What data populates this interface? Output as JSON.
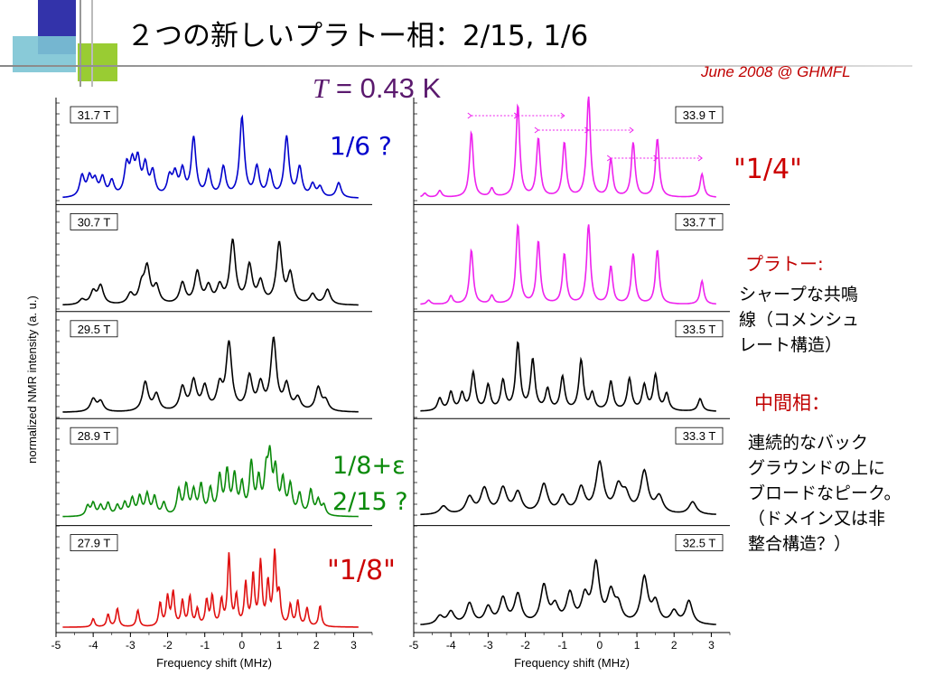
{
  "slide": {
    "title": "２つの新しいプラトー相：2/15, 1/6",
    "date_label": "June 2008 @ GHMFL",
    "temperature": {
      "symbol": "T",
      "rest": " = 0.43 K"
    },
    "annotations": {
      "one_sixth": "1/6 ?",
      "one_quarter": "\"1/4\"",
      "one_eighth_eps": "1/8+ε",
      "two_fifteenth": "2/15 ?",
      "one_eighth": "\"1/8\""
    },
    "notes": {
      "plateau_heading": "プラトー:",
      "plateau_lines": [
        "シャープな共鳴",
        "線（コメンシュ",
        "レート構造）"
      ],
      "intermediate_heading": "中間相：",
      "intermediate_lines": [
        "連続的なバック",
        "グラウンドの上に",
        "ブロードなピーク。",
        "（ドメイン又は非",
        "整合構造？）"
      ]
    },
    "colors": {
      "title_text": "#000000",
      "date": "#c00000",
      "blue": "#0000cc",
      "magenta": "#ee22ee",
      "green": "#0a8a0a",
      "red": "#e01010",
      "black": "#000000",
      "deco_blue": "#3333aa",
      "deco_green": "#99cc33",
      "deco_teal": "#66bbcc"
    }
  },
  "chart_data": {
    "type": "line",
    "ylabel": "normalized NMR intensity (a. u.)",
    "left": {
      "xlabel": "Frequency shift  (MHz)",
      "xlim": [
        -5,
        3.5
      ],
      "xticks": [
        -5,
        -4,
        -3,
        -2,
        -1,
        0,
        1,
        2,
        3
      ],
      "panels": [
        {
          "label": "31.7 T",
          "color": "blue",
          "background": 0.03,
          "width": 0.075,
          "peaks": [
            [
              -4.3,
              0.25
            ],
            [
              -4.1,
              0.22
            ],
            [
              -3.95,
              0.18
            ],
            [
              -3.75,
              0.22
            ],
            [
              -3.5,
              0.18
            ],
            [
              -3.1,
              0.35
            ],
            [
              -2.95,
              0.35
            ],
            [
              -2.8,
              0.4
            ],
            [
              -2.6,
              0.35
            ],
            [
              -2.4,
              0.28
            ],
            [
              -1.95,
              0.22
            ],
            [
              -1.8,
              0.25
            ],
            [
              -1.6,
              0.3
            ],
            [
              -1.3,
              0.7
            ],
            [
              -0.9,
              0.3
            ],
            [
              -0.5,
              0.35
            ],
            [
              0.0,
              0.95
            ],
            [
              0.4,
              0.35
            ],
            [
              0.75,
              0.3
            ],
            [
              1.2,
              0.72
            ],
            [
              1.55,
              0.35
            ],
            [
              1.9,
              0.15
            ],
            [
              2.1,
              0.12
            ],
            [
              2.6,
              0.18
            ]
          ]
        },
        {
          "label": "30.7 T",
          "color": "black",
          "background": 0.03,
          "width": 0.09,
          "peaks": [
            [
              -4.3,
              0.06
            ],
            [
              -4.0,
              0.15
            ],
            [
              -3.8,
              0.22
            ],
            [
              -3.0,
              0.12
            ],
            [
              -2.7,
              0.2
            ],
            [
              -2.55,
              0.42
            ],
            [
              -2.3,
              0.2
            ],
            [
              -1.6,
              0.25
            ],
            [
              -1.2,
              0.38
            ],
            [
              -0.9,
              0.2
            ],
            [
              -0.6,
              0.2
            ],
            [
              -0.25,
              0.75
            ],
            [
              0.2,
              0.45
            ],
            [
              0.5,
              0.25
            ],
            [
              1.0,
              0.72
            ],
            [
              1.3,
              0.35
            ],
            [
              1.9,
              0.12
            ],
            [
              2.3,
              0.18
            ]
          ]
        },
        {
          "label": "29.5 T",
          "color": "black",
          "background": 0.03,
          "width": 0.09,
          "peaks": [
            [
              -4.0,
              0.15
            ],
            [
              -3.8,
              0.12
            ],
            [
              -2.6,
              0.35
            ],
            [
              -2.3,
              0.2
            ],
            [
              -1.6,
              0.28
            ],
            [
              -1.3,
              0.35
            ],
            [
              -1.0,
              0.28
            ],
            [
              -0.6,
              0.28
            ],
            [
              -0.35,
              0.8
            ],
            [
              0.2,
              0.4
            ],
            [
              0.5,
              0.3
            ],
            [
              0.85,
              0.85
            ],
            [
              1.2,
              0.3
            ],
            [
              1.5,
              0.15
            ],
            [
              2.05,
              0.28
            ],
            [
              2.25,
              0.12
            ]
          ]
        },
        {
          "label": "28.9 T",
          "color": "green",
          "background": 0.06,
          "width": 0.06,
          "peaks": [
            [
              -4.15,
              0.12
            ],
            [
              -4.0,
              0.15
            ],
            [
              -3.8,
              0.12
            ],
            [
              -3.6,
              0.15
            ],
            [
              -3.35,
              0.12
            ],
            [
              -3.15,
              0.15
            ],
            [
              -2.95,
              0.2
            ],
            [
              -2.75,
              0.22
            ],
            [
              -2.55,
              0.25
            ],
            [
              -2.35,
              0.22
            ],
            [
              -2.1,
              0.15
            ],
            [
              -1.7,
              0.3
            ],
            [
              -1.5,
              0.35
            ],
            [
              -1.3,
              0.28
            ],
            [
              -1.1,
              0.35
            ],
            [
              -0.85,
              0.3
            ],
            [
              -0.6,
              0.45
            ],
            [
              -0.4,
              0.5
            ],
            [
              -0.2,
              0.45
            ],
            [
              0.0,
              0.35
            ],
            [
              0.25,
              0.6
            ],
            [
              0.45,
              0.4
            ],
            [
              0.65,
              0.45
            ],
            [
              0.75,
              0.62
            ],
            [
              0.9,
              0.5
            ],
            [
              1.1,
              0.4
            ],
            [
              1.3,
              0.35
            ],
            [
              1.55,
              0.25
            ],
            [
              1.85,
              0.3
            ],
            [
              2.05,
              0.18
            ],
            [
              2.2,
              0.12
            ]
          ]
        },
        {
          "label": "27.9 T",
          "color": "red",
          "background": 0.02,
          "width": 0.045,
          "peaks": [
            [
              -4.0,
              0.1
            ],
            [
              -3.6,
              0.15
            ],
            [
              -3.35,
              0.22
            ],
            [
              -2.8,
              0.2
            ],
            [
              -2.2,
              0.28
            ],
            [
              -2.0,
              0.35
            ],
            [
              -1.85,
              0.4
            ],
            [
              -1.6,
              0.3
            ],
            [
              -1.4,
              0.35
            ],
            [
              -1.2,
              0.2
            ],
            [
              -0.95,
              0.3
            ],
            [
              -0.8,
              0.35
            ],
            [
              -0.55,
              0.3
            ],
            [
              -0.35,
              0.85
            ],
            [
              -0.15,
              0.35
            ],
            [
              0.1,
              0.5
            ],
            [
              0.3,
              0.6
            ],
            [
              0.5,
              0.75
            ],
            [
              0.7,
              0.5
            ],
            [
              0.88,
              0.85
            ],
            [
              1.0,
              0.35
            ],
            [
              1.3,
              0.25
            ],
            [
              1.5,
              0.3
            ],
            [
              1.75,
              0.22
            ],
            [
              2.1,
              0.25
            ]
          ]
        }
      ]
    },
    "right": {
      "xlabel": "Frequency shift  (MHz)",
      "xlim": [
        -5,
        3.5
      ],
      "xticks": [
        -5,
        -4,
        -3,
        -2,
        -1,
        0,
        1,
        2,
        3
      ],
      "panels": [
        {
          "label": "33.9 T",
          "color": "magenta",
          "background": 0.04,
          "width": 0.06,
          "peaks": [
            [
              -4.7,
              0.05
            ],
            [
              -4.3,
              0.08
            ],
            [
              -3.45,
              0.78
            ],
            [
              -2.9,
              0.1
            ],
            [
              -2.2,
              1.1
            ],
            [
              -1.65,
              0.7
            ],
            [
              -0.95,
              0.65
            ],
            [
              -0.3,
              1.2
            ],
            [
              0.3,
              0.45
            ],
            [
              0.9,
              0.65
            ],
            [
              1.55,
              0.7
            ],
            [
              2.75,
              0.28
            ]
          ]
        },
        {
          "label": "33.7 T",
          "color": "magenta",
          "background": 0.04,
          "width": 0.06,
          "peaks": [
            [
              -4.6,
              0.05
            ],
            [
              -4.0,
              0.1
            ],
            [
              -3.45,
              0.65
            ],
            [
              -2.9,
              0.1
            ],
            [
              -2.2,
              0.95
            ],
            [
              -1.65,
              0.75
            ],
            [
              -0.95,
              0.6
            ],
            [
              -0.3,
              0.95
            ],
            [
              0.3,
              0.45
            ],
            [
              0.9,
              0.6
            ],
            [
              1.55,
              0.65
            ],
            [
              2.75,
              0.28
            ]
          ]
        },
        {
          "label": "33.5 T",
          "color": "black",
          "background": 0.04,
          "width": 0.07,
          "peaks": [
            [
              -4.3,
              0.15
            ],
            [
              -4.0,
              0.22
            ],
            [
              -3.7,
              0.2
            ],
            [
              -3.4,
              0.45
            ],
            [
              -3.0,
              0.3
            ],
            [
              -2.6,
              0.35
            ],
            [
              -2.2,
              0.8
            ],
            [
              -1.8,
              0.6
            ],
            [
              -1.4,
              0.25
            ],
            [
              -1.0,
              0.4
            ],
            [
              -0.5,
              0.6
            ],
            [
              -0.2,
              0.2
            ],
            [
              0.3,
              0.35
            ],
            [
              0.8,
              0.38
            ],
            [
              1.2,
              0.3
            ],
            [
              1.5,
              0.42
            ],
            [
              1.8,
              0.2
            ],
            [
              2.7,
              0.15
            ]
          ]
        },
        {
          "label": "33.3 T",
          "color": "black",
          "background": 0.08,
          "width": 0.12,
          "peaks": [
            [
              -4.2,
              0.1
            ],
            [
              -3.5,
              0.2
            ],
            [
              -3.1,
              0.3
            ],
            [
              -2.6,
              0.3
            ],
            [
              -2.2,
              0.25
            ],
            [
              -1.5,
              0.35
            ],
            [
              -1.0,
              0.2
            ],
            [
              -0.5,
              0.3
            ],
            [
              0.0,
              0.6
            ],
            [
              0.5,
              0.3
            ],
            [
              0.7,
              0.2
            ],
            [
              1.2,
              0.5
            ],
            [
              1.6,
              0.2
            ],
            [
              2.5,
              0.15
            ]
          ]
        },
        {
          "label": "32.5 T",
          "color": "black",
          "background": 0.04,
          "width": 0.11,
          "peaks": [
            [
              -4.3,
              0.1
            ],
            [
              -4.0,
              0.15
            ],
            [
              -3.5,
              0.25
            ],
            [
              -3.0,
              0.2
            ],
            [
              -2.6,
              0.3
            ],
            [
              -2.2,
              0.35
            ],
            [
              -1.5,
              0.45
            ],
            [
              -1.2,
              0.2
            ],
            [
              -0.8,
              0.35
            ],
            [
              -0.4,
              0.3
            ],
            [
              -0.1,
              0.7
            ],
            [
              0.3,
              0.35
            ],
            [
              0.5,
              0.2
            ],
            [
              1.2,
              0.55
            ],
            [
              1.5,
              0.25
            ],
            [
              2.0,
              0.15
            ],
            [
              2.4,
              0.28
            ]
          ]
        }
      ]
    }
  }
}
